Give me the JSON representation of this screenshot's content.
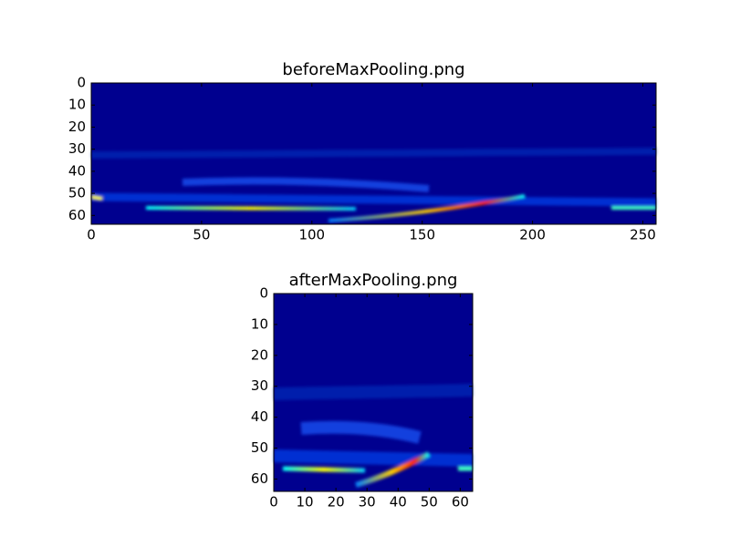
{
  "chart_data": [
    {
      "type": "heatmap",
      "title": "beforeMaxPooling.png",
      "colormap": "jet",
      "xlim": [
        0,
        256
      ],
      "ylim": [
        64,
        0
      ],
      "xticks": [
        0,
        50,
        100,
        150,
        200,
        250
      ],
      "yticks": [
        0,
        10,
        20,
        30,
        40,
        50,
        60
      ]
    },
    {
      "type": "heatmap",
      "title": "afterMaxPooling.png",
      "colormap": "jet",
      "xlim": [
        0,
        64
      ],
      "ylim": [
        64,
        0
      ],
      "xticks": [
        0,
        10,
        20,
        30,
        40,
        50,
        60
      ],
      "yticks": [
        0,
        10,
        20,
        30,
        40,
        50,
        60
      ]
    }
  ]
}
